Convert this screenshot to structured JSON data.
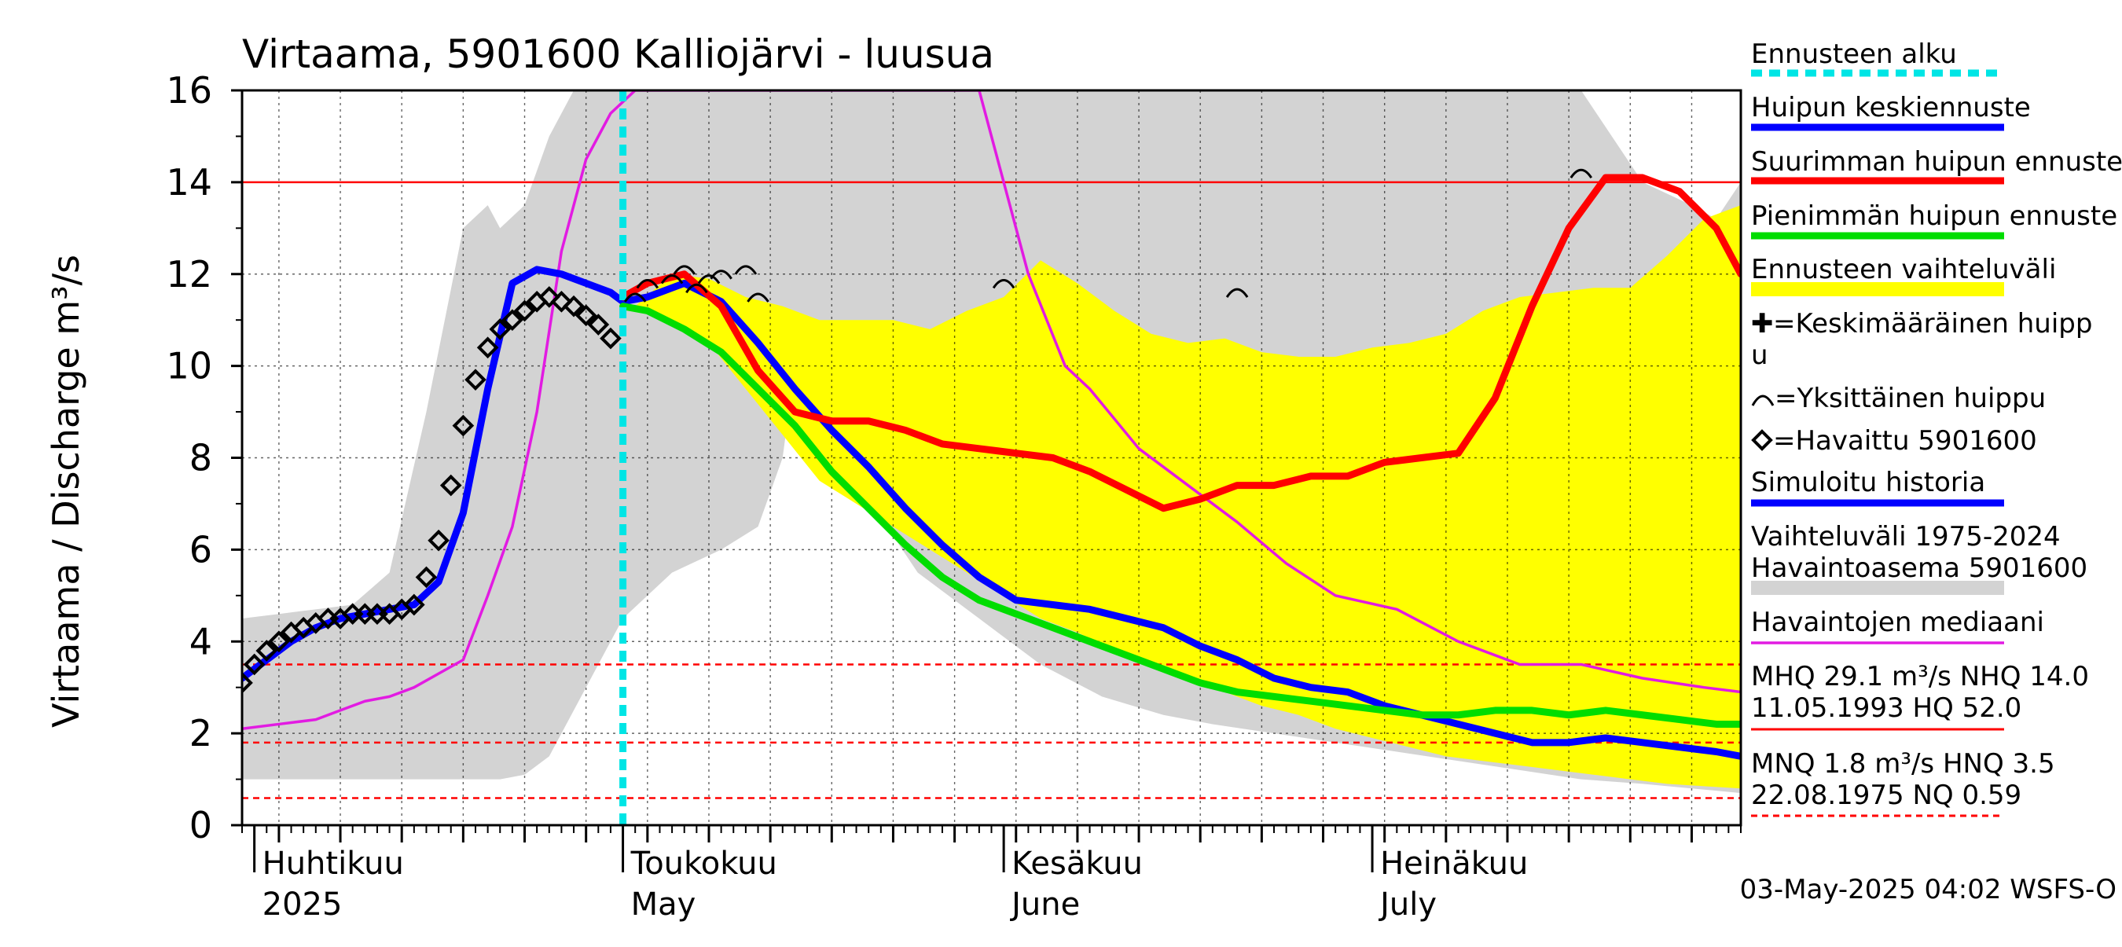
{
  "chart_data": {
    "type": "line",
    "title": "Virtaama, 5901600 Kalliojärvi - luusua",
    "ylabel": "Virtaama / Discharge    m³/s",
    "ylim": [
      0,
      16
    ],
    "yticks": [
      0,
      2,
      4,
      6,
      8,
      10,
      12,
      14,
      16
    ],
    "xlim": [
      "2025-03-31",
      "2025-07-31"
    ],
    "grid": true,
    "forecast_start": "2025-05-01",
    "months": [
      {
        "date": "2025-04-01",
        "fi": "Huhtikuu",
        "en": "2025"
      },
      {
        "date": "2025-05-01",
        "fi": "Toukokuu",
        "en": "May"
      },
      {
        "date": "2025-06-01",
        "fi": "Kesäkuu",
        "en": "June"
      },
      {
        "date": "2025-07-01",
        "fi": "Heinäkuu",
        "en": "July"
      }
    ],
    "reference_lines": [
      {
        "value": 14.0,
        "style": "solid"
      },
      {
        "value": 3.5,
        "style": "dashed"
      },
      {
        "value": 1.8,
        "style": "dashed"
      },
      {
        "value": 0.59,
        "style": "dashed"
      }
    ],
    "bands": [
      {
        "name": "Vaihteluväli 1975-2024 Havaintoasema 5901600",
        "color": "#d3d3d3",
        "x": [
          "2025-03-31",
          "2025-04-03",
          "2025-04-06",
          "2025-04-09",
          "2025-04-12",
          "2025-04-15",
          "2025-04-18",
          "2025-04-20",
          "2025-04-21",
          "2025-04-23",
          "2025-04-25",
          "2025-04-27",
          "2025-04-29",
          "2025-05-01",
          "2025-05-05",
          "2025-05-09",
          "2025-05-12",
          "2025-05-14",
          "2025-05-15",
          "2025-05-20",
          "2025-05-25",
          "2025-05-30",
          "2025-06-04",
          "2025-06-09",
          "2025-06-14",
          "2025-06-18",
          "2025-06-23",
          "2025-06-28",
          "2025-07-03",
          "2025-07-08",
          "2025-07-13",
          "2025-07-18",
          "2025-07-23",
          "2025-07-27",
          "2025-07-29",
          "2025-07-31"
        ],
        "upper": [
          4.5,
          4.6,
          4.7,
          4.8,
          5.5,
          9.0,
          13.0,
          13.5,
          13.0,
          13.5,
          15.0,
          16.0,
          16.0,
          16.0,
          16.0,
          16.0,
          16.0,
          16.0,
          16.0,
          16.0,
          16.0,
          16.0,
          16.0,
          16.0,
          16.0,
          16.0,
          16.0,
          16.0,
          16.0,
          16.0,
          16.0,
          16.0,
          14.0,
          13.5,
          13.2,
          14.0
        ],
        "lower": [
          1.0,
          1.0,
          1.0,
          1.0,
          1.0,
          1.0,
          1.0,
          1.0,
          1.0,
          1.1,
          1.5,
          2.5,
          3.5,
          4.5,
          5.5,
          6.0,
          6.5,
          8.0,
          10.0,
          7.5,
          5.5,
          4.5,
          3.5,
          2.8,
          2.4,
          2.2,
          2.0,
          1.8,
          1.6,
          1.4,
          1.2,
          1.0,
          0.9,
          0.8,
          0.75,
          0.7
        ]
      },
      {
        "name": "Ennusteen vaihteluväli",
        "color": "#ffff00",
        "x": [
          "2025-05-02",
          "2025-05-05",
          "2025-05-08",
          "2025-05-11",
          "2025-05-14",
          "2025-05-17",
          "2025-05-20",
          "2025-05-23",
          "2025-05-26",
          "2025-05-29",
          "2025-06-01",
          "2025-06-04",
          "2025-06-07",
          "2025-06-10",
          "2025-06-13",
          "2025-06-16",
          "2025-06-19",
          "2025-06-22",
          "2025-06-25",
          "2025-06-28",
          "2025-07-01",
          "2025-07-04",
          "2025-07-07",
          "2025-07-10",
          "2025-07-13",
          "2025-07-16",
          "2025-07-19",
          "2025-07-22",
          "2025-07-25",
          "2025-07-28",
          "2025-07-31"
        ],
        "upper": [
          11.3,
          12.0,
          11.9,
          11.5,
          11.3,
          11.0,
          11.0,
          11.0,
          10.8,
          11.2,
          11.5,
          12.3,
          11.8,
          11.2,
          10.7,
          10.5,
          10.6,
          10.3,
          10.2,
          10.2,
          10.4,
          10.5,
          10.7,
          11.2,
          11.5,
          11.6,
          11.7,
          11.7,
          12.4,
          13.2,
          13.5
        ],
        "lower": [
          11.2,
          11.0,
          10.5,
          9.5,
          8.5,
          7.5,
          7.0,
          6.5,
          6.0,
          5.5,
          5.0,
          4.5,
          4.2,
          3.8,
          3.5,
          3.2,
          2.9,
          2.6,
          2.4,
          2.1,
          1.9,
          1.7,
          1.5,
          1.4,
          1.3,
          1.2,
          1.1,
          1.0,
          0.9,
          0.85,
          0.8
        ]
      }
    ],
    "series": [
      {
        "name": "Havaintojen mediaani",
        "color": "#e21be2",
        "x": [
          "2025-03-31",
          "2025-04-03",
          "2025-04-06",
          "2025-04-08",
          "2025-04-10",
          "2025-04-12",
          "2025-04-14",
          "2025-04-16",
          "2025-04-18",
          "2025-04-20",
          "2025-04-22",
          "2025-04-24",
          "2025-04-26",
          "2025-04-28",
          "2025-04-30",
          "2025-05-02",
          "2025-05-04",
          "2025-05-06",
          "2025-05-08",
          "2025-05-10",
          "2025-05-14",
          "2025-05-18",
          "2025-05-22",
          "2025-05-26",
          "2025-05-30",
          "2025-06-03",
          "2025-06-06",
          "2025-06-08",
          "2025-06-12",
          "2025-06-16",
          "2025-06-20",
          "2025-06-24",
          "2025-06-28",
          "2025-07-03",
          "2025-07-08",
          "2025-07-13",
          "2025-07-18",
          "2025-07-23",
          "2025-07-28",
          "2025-07-31"
        ],
        "values": [
          2.1,
          2.2,
          2.3,
          2.5,
          2.7,
          2.8,
          3.0,
          3.3,
          3.6,
          5.0,
          6.5,
          9.0,
          12.5,
          14.5,
          15.5,
          16.0,
          16.0,
          16.0,
          16.0,
          16.0,
          16.0,
          16.0,
          16.0,
          16.0,
          16.0,
          12.0,
          10.0,
          9.5,
          8.2,
          7.4,
          6.6,
          5.7,
          5.0,
          4.7,
          4.0,
          3.5,
          3.5,
          3.2,
          3.0,
          2.9
        ]
      },
      {
        "name": "Simuloitu historia",
        "color": "#0000ff",
        "x": [
          "2025-03-31",
          "2025-04-02",
          "2025-04-04",
          "2025-04-06",
          "2025-04-08",
          "2025-04-10",
          "2025-04-12",
          "2025-04-14",
          "2025-04-16",
          "2025-04-18",
          "2025-04-20",
          "2025-04-22",
          "2025-04-24",
          "2025-04-26",
          "2025-04-28",
          "2025-04-30",
          "2025-05-01"
        ],
        "values": [
          3.2,
          3.6,
          4.0,
          4.3,
          4.5,
          4.6,
          4.7,
          4.8,
          5.3,
          6.8,
          9.5,
          11.8,
          12.1,
          12.0,
          11.8,
          11.6,
          11.4
        ]
      },
      {
        "name": "Huipun keskiennuste",
        "color": "#0000ff",
        "x": [
          "2025-05-01",
          "2025-05-03",
          "2025-05-06",
          "2025-05-09",
          "2025-05-12",
          "2025-05-15",
          "2025-05-18",
          "2025-05-21",
          "2025-05-24",
          "2025-05-27",
          "2025-05-30",
          "2025-06-02",
          "2025-06-05",
          "2025-06-08",
          "2025-06-11",
          "2025-06-14",
          "2025-06-17",
          "2025-06-20",
          "2025-06-23",
          "2025-06-26",
          "2025-06-29",
          "2025-07-02",
          "2025-07-05",
          "2025-07-08",
          "2025-07-11",
          "2025-07-14",
          "2025-07-17",
          "2025-07-20",
          "2025-07-23",
          "2025-07-26",
          "2025-07-29",
          "2025-07-31"
        ],
        "values": [
          11.4,
          11.5,
          11.8,
          11.4,
          10.5,
          9.5,
          8.6,
          7.8,
          6.9,
          6.1,
          5.4,
          4.9,
          4.8,
          4.7,
          4.5,
          4.3,
          3.9,
          3.6,
          3.2,
          3.0,
          2.9,
          2.6,
          2.4,
          2.2,
          2.0,
          1.8,
          1.8,
          1.9,
          1.8,
          1.7,
          1.6,
          1.5
        ]
      },
      {
        "name": "Suurimman huipun ennuste",
        "color": "#ff0000",
        "x": [
          "2025-05-01",
          "2025-05-03",
          "2025-05-06",
          "2025-05-09",
          "2025-05-12",
          "2025-05-15",
          "2025-05-18",
          "2025-05-21",
          "2025-05-24",
          "2025-05-27",
          "2025-05-30",
          "2025-06-02",
          "2025-06-05",
          "2025-06-08",
          "2025-06-11",
          "2025-06-14",
          "2025-06-17",
          "2025-06-20",
          "2025-06-23",
          "2025-06-26",
          "2025-06-29",
          "2025-07-02",
          "2025-07-05",
          "2025-07-08",
          "2025-07-11",
          "2025-07-14",
          "2025-07-17",
          "2025-07-20",
          "2025-07-23",
          "2025-07-26",
          "2025-07-29",
          "2025-07-31"
        ],
        "values": [
          11.5,
          11.8,
          12.0,
          11.3,
          9.9,
          9.0,
          8.8,
          8.8,
          8.6,
          8.3,
          8.2,
          8.1,
          8.0,
          7.7,
          7.3,
          6.9,
          7.1,
          7.4,
          7.4,
          7.6,
          7.6,
          7.9,
          8.0,
          8.1,
          9.3,
          11.3,
          13.0,
          14.1,
          14.1,
          13.8,
          13.0,
          12.0
        ]
      },
      {
        "name": "Pienimmän huipun ennuste",
        "color": "#00dd00",
        "x": [
          "2025-05-01",
          "2025-05-03",
          "2025-05-06",
          "2025-05-09",
          "2025-05-12",
          "2025-05-15",
          "2025-05-18",
          "2025-05-21",
          "2025-05-24",
          "2025-05-27",
          "2025-05-30",
          "2025-06-02",
          "2025-06-05",
          "2025-06-08",
          "2025-06-11",
          "2025-06-14",
          "2025-06-17",
          "2025-06-20",
          "2025-06-23",
          "2025-06-26",
          "2025-06-29",
          "2025-07-02",
          "2025-07-05",
          "2025-07-08",
          "2025-07-11",
          "2025-07-14",
          "2025-07-17",
          "2025-07-20",
          "2025-07-23",
          "2025-07-26",
          "2025-07-29",
          "2025-07-31"
        ],
        "values": [
          11.3,
          11.2,
          10.8,
          10.3,
          9.5,
          8.7,
          7.7,
          6.9,
          6.1,
          5.4,
          4.9,
          4.6,
          4.3,
          4.0,
          3.7,
          3.4,
          3.1,
          2.9,
          2.8,
          2.7,
          2.6,
          2.5,
          2.4,
          2.4,
          2.5,
          2.5,
          2.4,
          2.5,
          2.4,
          2.3,
          2.2,
          2.2
        ]
      }
    ],
    "observed": {
      "name": "=Havaittu 5901600",
      "x": [
        "2025-03-31",
        "2025-04-01",
        "2025-04-02",
        "2025-04-03",
        "2025-04-04",
        "2025-04-05",
        "2025-04-06",
        "2025-04-07",
        "2025-04-08",
        "2025-04-09",
        "2025-04-10",
        "2025-04-11",
        "2025-04-12",
        "2025-04-13",
        "2025-04-14",
        "2025-04-15",
        "2025-04-16",
        "2025-04-17",
        "2025-04-18",
        "2025-04-19",
        "2025-04-20",
        "2025-04-21",
        "2025-04-22",
        "2025-04-23",
        "2025-04-24",
        "2025-04-25",
        "2025-04-26",
        "2025-04-27",
        "2025-04-28",
        "2025-04-29",
        "2025-04-30"
      ],
      "values": [
        3.1,
        3.5,
        3.8,
        4.0,
        4.2,
        4.3,
        4.4,
        4.5,
        4.5,
        4.6,
        4.6,
        4.6,
        4.6,
        4.7,
        4.8,
        5.4,
        6.2,
        7.4,
        8.7,
        9.7,
        10.4,
        10.8,
        11.0,
        11.2,
        11.4,
        11.5,
        11.4,
        11.3,
        11.1,
        10.9,
        10.6
      ]
    },
    "single_peaks": {
      "name": "=Yksittäinen huippu",
      "x": [
        "2025-05-02",
        "2025-05-03",
        "2025-05-05",
        "2025-05-06",
        "2025-05-07",
        "2025-05-08",
        "2025-05-09",
        "2025-05-11",
        "2025-05-12",
        "2025-06-01",
        "2025-06-20",
        "2025-07-18"
      ],
      "values": [
        11.5,
        11.8,
        11.9,
        12.1,
        11.7,
        11.9,
        12.0,
        12.1,
        11.5,
        11.8,
        11.6,
        14.2
      ]
    },
    "legend": {
      "position": "right",
      "items": [
        {
          "label": "Ennusteen alku",
          "color": "#00e5e5",
          "style": "dashed"
        },
        {
          "label": "Huipun keskiennuste",
          "color": "#0000ff",
          "style": "line"
        },
        {
          "label": "Suurimman huipun ennuste",
          "color": "#ff0000",
          "style": "line"
        },
        {
          "label": "Pienimmän huipun ennuste",
          "color": "#00dd00",
          "style": "line"
        },
        {
          "label": "Ennusteen vaihteluväli",
          "color": "#ffff00",
          "style": "band"
        },
        {
          "label": "=Keskimääräinen huipp",
          "label2": "u",
          "style": "cross"
        },
        {
          "label": "=Yksittäinen huippu",
          "style": "arc"
        },
        {
          "label": "=Havaittu 5901600",
          "style": "diamond"
        },
        {
          "label": "Simuloitu historia",
          "color": "#0000ff",
          "style": "line"
        },
        {
          "label": "Vaihteluväli 1975-2024",
          "label2": " Havaintoasema 5901600",
          "color": "#d3d3d3",
          "style": "band"
        },
        {
          "label": "Havaintojen mediaani",
          "color": "#e21be2",
          "style": "thin"
        },
        {
          "label": "MHQ 29.1 m³/s NHQ 14.0",
          "label2": "11.05.1993 HQ 52.0",
          "color": "#ff0000",
          "style": "thin-solid"
        },
        {
          "label": "MNQ  1.8 m³/s HNQ  3.5",
          "label2": "22.08.1975 NQ 0.59",
          "color": "#ff0000",
          "style": "thin-dashed"
        }
      ]
    },
    "footer": "03-May-2025 04:02 WSFS-O"
  }
}
